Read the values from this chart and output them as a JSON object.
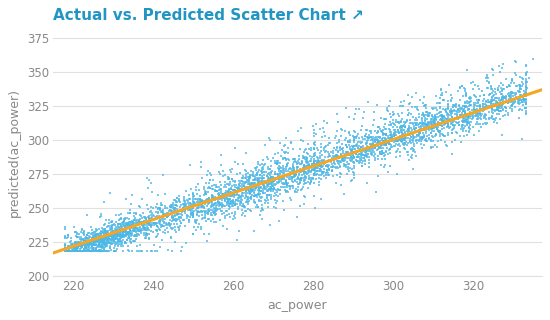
{
  "title": "Actual vs. Predicted Scatter Chart ↗",
  "xlabel": "ac_power",
  "ylabel": "predicted(ac_power)",
  "xlim": [
    215,
    337
  ],
  "ylim": [
    200,
    382
  ],
  "xticks": [
    220,
    240,
    260,
    280,
    300,
    320
  ],
  "yticks": [
    200,
    225,
    250,
    275,
    300,
    325,
    350,
    375
  ],
  "scatter_color": "#4db8e8",
  "line_color": "#f5a623",
  "title_color": "#2196c4",
  "axis_color": "#888888",
  "grid_color": "#e0e0e0",
  "background_color": "#ffffff",
  "line_x_start": 215,
  "line_x_end": 337,
  "line_y_start": 217,
  "line_y_end": 337,
  "seed": 42,
  "scatter_alpha": 0.75,
  "scatter_size": 3,
  "title_fontsize": 11,
  "label_fontsize": 9,
  "tick_fontsize": 8.5
}
